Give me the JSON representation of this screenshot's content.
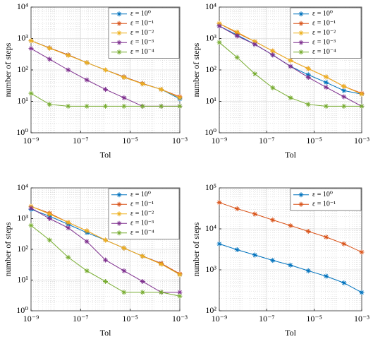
{
  "chart_data": [
    {
      "type": "line",
      "xlabel": "Tol",
      "ylabel": "number of steps",
      "log_x": true,
      "log_y": true,
      "grid": true,
      "minor_grid": true,
      "legend": "northeast",
      "x": [
        1e-09,
        5.62e-09,
        3.16e-08,
        1.78e-07,
        1e-06,
        5.62e-06,
        3.16e-05,
        0.000178,
        0.001
      ],
      "xlim": [
        1e-09,
        0.001
      ],
      "xticks": [
        {
          "value": 1e-09,
          "label": "10⁻⁹"
        },
        {
          "value": 1e-07,
          "label": "10⁻⁷"
        },
        {
          "value": 1e-05,
          "label": "10⁻⁵"
        },
        {
          "value": 0.001,
          "label": "10⁻³"
        }
      ],
      "ylim": [
        1,
        10000
      ],
      "yticks": [
        {
          "value": 1,
          "label": "10⁰"
        },
        {
          "value": 10,
          "label": "10¹"
        },
        {
          "value": 100,
          "label": "10²"
        },
        {
          "value": 1000,
          "label": "10³"
        },
        {
          "value": 10000,
          "label": "10⁴"
        }
      ],
      "series": [
        {
          "name": "ε = 10⁰",
          "color": "#0072BD",
          "values": [
            850,
            500,
            300,
            170,
            100,
            60,
            37,
            24,
            12
          ]
        },
        {
          "name": "ε = 10⁻¹",
          "color": "#D95319",
          "values": [
            850,
            500,
            300,
            170,
            100,
            60,
            37,
            24,
            14
          ]
        },
        {
          "name": "ε = 10⁻²",
          "color": "#EDB120",
          "values": [
            850,
            490,
            290,
            170,
            100,
            58,
            36,
            24,
            13
          ]
        },
        {
          "name": "ε = 10⁻³",
          "color": "#7E2F8E",
          "values": [
            480,
            220,
            100,
            48,
            24,
            13,
            7,
            7,
            7
          ]
        },
        {
          "name": "ε = 10⁻⁴",
          "color": "#77AC30",
          "values": [
            18,
            8,
            7,
            7,
            7,
            7,
            7,
            7,
            7
          ]
        }
      ]
    },
    {
      "type": "line",
      "xlabel": "Tol",
      "ylabel": "number of steps",
      "log_x": true,
      "log_y": true,
      "grid": true,
      "minor_grid": true,
      "legend": "northeast",
      "x": [
        1e-09,
        5.62e-09,
        3.16e-08,
        1.78e-07,
        1e-06,
        5.62e-06,
        3.16e-05,
        0.000178,
        0.001
      ],
      "xlim": [
        1e-09,
        0.001
      ],
      "xticks": [
        {
          "value": 1e-09,
          "label": "10⁻⁹"
        },
        {
          "value": 1e-07,
          "label": "10⁻⁷"
        },
        {
          "value": 1e-05,
          "label": "10⁻⁵"
        },
        {
          "value": 0.001,
          "label": "10⁻³"
        }
      ],
      "ylim": [
        1,
        10000
      ],
      "yticks": [
        {
          "value": 1,
          "label": "10⁰"
        },
        {
          "value": 10,
          "label": "10¹"
        },
        {
          "value": 100,
          "label": "10²"
        },
        {
          "value": 1000,
          "label": "10³"
        },
        {
          "value": 10000,
          "label": "10⁴"
        }
      ],
      "series": [
        {
          "name": "ε = 10⁰",
          "color": "#0072BD",
          "values": [
            2500,
            1300,
            650,
            300,
            130,
            70,
            40,
            22,
            17
          ]
        },
        {
          "name": "ε = 10⁻¹",
          "color": "#D95319",
          "values": [
            3000,
            1500,
            800,
            400,
            200,
            110,
            60,
            30,
            18
          ]
        },
        {
          "name": "ε = 10⁻²",
          "color": "#EDB120",
          "values": [
            3000,
            1600,
            800,
            400,
            200,
            110,
            60,
            30,
            17
          ]
        },
        {
          "name": "ε = 10⁻³",
          "color": "#7E2F8E",
          "values": [
            2500,
            1200,
            650,
            300,
            130,
            58,
            28,
            14,
            7
          ]
        },
        {
          "name": "ε = 10⁻⁴",
          "color": "#77AC30",
          "values": [
            750,
            250,
            75,
            27,
            13,
            8,
            7,
            7,
            7
          ]
        }
      ]
    },
    {
      "type": "line",
      "xlabel": "Tol",
      "ylabel": "number of steps",
      "log_x": true,
      "log_y": true,
      "grid": true,
      "minor_grid": true,
      "legend": "northeast",
      "x": [
        1e-09,
        5.62e-09,
        3.16e-08,
        1.78e-07,
        1e-06,
        5.62e-06,
        3.16e-05,
        0.000178,
        0.001
      ],
      "xlim": [
        1e-09,
        0.001
      ],
      "xticks": [
        {
          "value": 1e-09,
          "label": "10⁻⁹"
        },
        {
          "value": 1e-07,
          "label": "10⁻⁷"
        },
        {
          "value": 1e-05,
          "label": "10⁻⁵"
        },
        {
          "value": 0.001,
          "label": "10⁻³"
        }
      ],
      "ylim": [
        1,
        10000
      ],
      "yticks": [
        {
          "value": 1,
          "label": "10⁰"
        },
        {
          "value": 10,
          "label": "10¹"
        },
        {
          "value": 100,
          "label": "10²"
        },
        {
          "value": 1000,
          "label": "10³"
        },
        {
          "value": 10000,
          "label": "10⁴"
        }
      ],
      "series": [
        {
          "name": "ε = 10⁰",
          "color": "#0072BD",
          "values": [
            2000,
            1200,
            650,
            350,
            200,
            110,
            60,
            35,
            15
          ]
        },
        {
          "name": "ε = 10⁻¹",
          "color": "#D95319",
          "values": [
            2500,
            1500,
            750,
            400,
            200,
            110,
            60,
            35,
            16
          ]
        },
        {
          "name": "ε = 10⁻²",
          "color": "#EDB120",
          "values": [
            2500,
            1400,
            750,
            400,
            200,
            110,
            60,
            33,
            15
          ]
        },
        {
          "name": "ε = 10⁻³",
          "color": "#7E2F8E",
          "values": [
            2200,
            1000,
            500,
            180,
            45,
            20,
            9,
            4,
            4
          ]
        },
        {
          "name": "ε = 10⁻⁴",
          "color": "#77AC30",
          "values": [
            600,
            200,
            55,
            20,
            9,
            4,
            4,
            4,
            3
          ]
        }
      ]
    },
    {
      "type": "line",
      "xlabel": "Tol",
      "ylabel": "number of steps",
      "log_x": true,
      "log_y": true,
      "grid": true,
      "minor_grid": true,
      "legend": "northeast",
      "x": [
        1e-09,
        5.62e-09,
        3.16e-08,
        1.78e-07,
        1e-06,
        5.62e-06,
        3.16e-05,
        0.000178,
        0.001
      ],
      "xlim": [
        1e-09,
        0.001
      ],
      "xticks": [
        {
          "value": 1e-09,
          "label": "10⁻⁹"
        },
        {
          "value": 1e-07,
          "label": "10⁻⁷"
        },
        {
          "value": 1e-05,
          "label": "10⁻⁵"
        },
        {
          "value": 0.001,
          "label": "10⁻³"
        }
      ],
      "ylim": [
        100,
        100000
      ],
      "yticks": [
        {
          "value": 100,
          "label": "10²"
        },
        {
          "value": 1000,
          "label": "10³"
        },
        {
          "value": 10000,
          "label": "10⁴"
        },
        {
          "value": 100000,
          "label": "10⁵"
        }
      ],
      "series": [
        {
          "name": "ε = 10⁰",
          "color": "#0072BD",
          "values": [
            4300,
            3100,
            2300,
            1700,
            1300,
            950,
            700,
            480,
            280
          ]
        },
        {
          "name": "ε = 10⁻¹",
          "color": "#D95319",
          "values": [
            44000,
            31000,
            23000,
            16500,
            12000,
            8700,
            6300,
            4300,
            2700
          ]
        }
      ]
    }
  ]
}
